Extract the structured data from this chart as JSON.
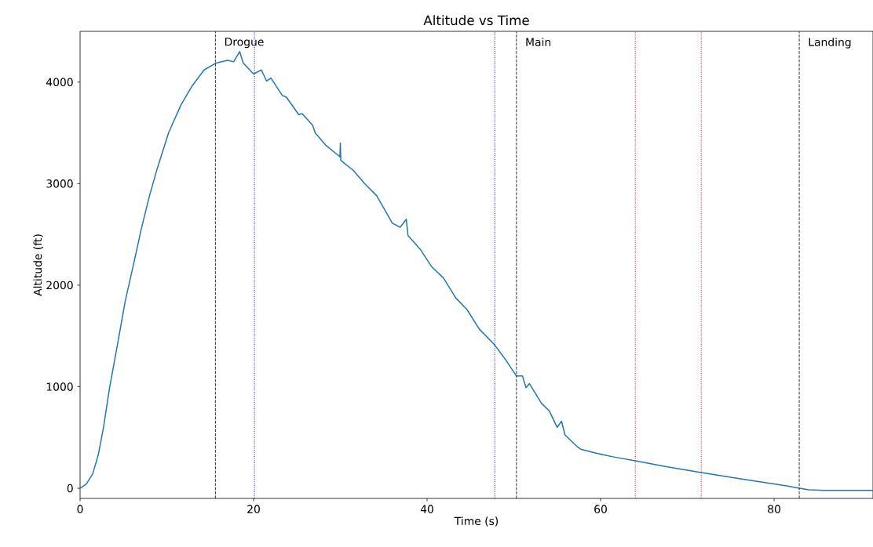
{
  "chart_data": {
    "type": "line",
    "title": "Altitude vs Time",
    "xlabel": "Time (s)",
    "ylabel": "Altitude (ft)",
    "xlim": [
      0,
      91.4
    ],
    "ylim": [
      -100,
      4500
    ],
    "xticks": [
      0,
      20,
      40,
      60,
      80
    ],
    "yticks": [
      0,
      1000,
      2000,
      3000,
      4000
    ],
    "series": [
      {
        "color": "#1f77b4",
        "x": [
          0,
          0.7,
          1.45,
          2.1,
          2.7,
          3.4,
          4.3,
          5.2,
          6.2,
          7.1,
          8.0,
          8.9,
          10.2,
          11.6,
          12.9,
          14.3,
          15.6,
          17.0,
          17.7,
          18.4,
          18.8,
          20.0,
          20.9,
          21.5,
          22.0,
          23.3,
          23.8,
          25.2,
          25.6,
          26.8,
          27.1,
          28.3,
          29.95,
          30.0,
          30.05,
          31.5,
          32.8,
          34.2,
          36.0,
          36.9,
          37.6,
          37.8,
          39.2,
          40.5,
          41.9,
          43.3,
          44.6,
          46.0,
          47.8,
          49.1,
          50.3,
          51.0,
          51.4,
          51.8,
          53.2,
          54.1,
          55.0,
          55.5,
          55.9,
          57.3,
          57.7,
          59.5,
          61.4,
          64.0,
          67.7,
          71.6,
          76.7,
          81.3,
          82.9,
          84.0,
          85.8,
          91.4
        ],
        "values": [
          0,
          40,
          140,
          330,
          600,
          990,
          1410,
          1840,
          2220,
          2570,
          2880,
          3150,
          3500,
          3770,
          3960,
          4120,
          4185,
          4215,
          4200,
          4300,
          4190,
          4080,
          4120,
          4010,
          4040,
          3870,
          3850,
          3680,
          3690,
          3575,
          3500,
          3380,
          3265,
          3400,
          3230,
          3130,
          3000,
          2880,
          2610,
          2570,
          2650,
          2490,
          2355,
          2185,
          2070,
          1875,
          1760,
          1570,
          1410,
          1260,
          1105,
          1105,
          990,
          1030,
          835,
          760,
          600,
          660,
          525,
          410,
          385,
          345,
          310,
          270,
          210,
          155,
          85,
          25,
          0,
          -15,
          -20,
          -20
        ]
      }
    ],
    "ref_lines": [
      {
        "axis": "x",
        "value": 15.6,
        "label": "Drogue",
        "color": "#333333",
        "line_style": "dashed"
      },
      {
        "axis": "x",
        "value": 20.1,
        "color": "#0000ff",
        "line_style": "dotted"
      },
      {
        "axis": "x",
        "value": 47.8,
        "color": "#0000ff",
        "line_style": "dotted"
      },
      {
        "axis": "x",
        "value": 50.3,
        "label": "Main",
        "color": "#333333",
        "line_style": "dashed"
      },
      {
        "axis": "x",
        "value": 64.0,
        "color": "#ff0000",
        "line_style": "dotted"
      },
      {
        "axis": "x",
        "value": 71.6,
        "color": "#ff0000",
        "line_style": "dotted"
      },
      {
        "axis": "x",
        "value": 82.9,
        "label": "Landing",
        "color": "#333333",
        "line_style": "dashed"
      }
    ]
  }
}
